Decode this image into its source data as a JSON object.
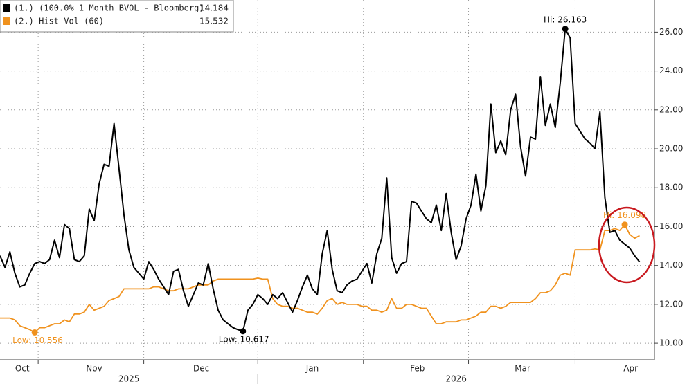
{
  "chart_data": {
    "type": "line",
    "series": [
      {
        "name": "(1.)  (100.0% 1 Month BVOL - Bloomberg)",
        "color": "#000000",
        "values": [
          14.5,
          13.9,
          14.7,
          13.6,
          12.9,
          13.0,
          13.6,
          14.1,
          14.2,
          14.1,
          14.3,
          15.3,
          14.4,
          16.1,
          15.9,
          14.3,
          14.2,
          14.5,
          16.9,
          16.3,
          18.2,
          19.2,
          19.1,
          21.3,
          19.0,
          16.6,
          14.8,
          13.9,
          13.6,
          13.3,
          14.2,
          13.8,
          13.3,
          12.9,
          12.5,
          13.7,
          13.8,
          12.7,
          11.9,
          12.5,
          13.1,
          13.0,
          14.1,
          12.8,
          11.7,
          11.2,
          11.0,
          10.8,
          10.7,
          10.617,
          11.7,
          12.0,
          12.5,
          12.3,
          12.0,
          12.5,
          12.3,
          12.6,
          12.1,
          11.6,
          12.2,
          12.9,
          13.5,
          12.8,
          12.5,
          14.6,
          15.8,
          13.8,
          12.7,
          12.6,
          13.0,
          13.2,
          13.3,
          13.7,
          14.1,
          13.1,
          14.6,
          15.4,
          18.5,
          14.4,
          13.6,
          14.1,
          14.2,
          17.3,
          17.2,
          16.8,
          16.4,
          16.2,
          17.1,
          15.8,
          17.7,
          15.7,
          14.3,
          15.0,
          16.4,
          17.1,
          18.7,
          16.8,
          18.1,
          22.3,
          19.8,
          20.4,
          19.7,
          22.0,
          22.8,
          20.1,
          18.6,
          20.6,
          20.5,
          23.7,
          21.2,
          22.3,
          21.1,
          23.4,
          26.163,
          25.7,
          21.3,
          20.9,
          20.5,
          20.3,
          20.0,
          21.9,
          17.5,
          15.7,
          15.8,
          15.3,
          15.1,
          14.9,
          14.5,
          14.184
        ]
      },
      {
        "name": "(2.) Hist Vol (60)",
        "color": "#f0921e",
        "values": [
          11.3,
          11.3,
          11.3,
          11.2,
          10.9,
          10.8,
          10.7,
          10.556,
          10.8,
          10.8,
          10.9,
          11.0,
          11.0,
          11.2,
          11.1,
          11.5,
          11.5,
          11.6,
          12.0,
          11.7,
          11.8,
          11.9,
          12.2,
          12.3,
          12.4,
          12.8,
          12.8,
          12.8,
          12.8,
          12.8,
          12.8,
          12.9,
          12.9,
          12.8,
          12.7,
          12.7,
          12.8,
          12.8,
          12.8,
          12.9,
          13.0,
          13.0,
          13.0,
          13.2,
          13.3,
          13.3,
          13.3,
          13.3,
          13.3,
          13.3,
          13.3,
          13.3,
          13.35,
          13.3,
          13.3,
          12.3,
          12.0,
          11.9,
          11.9,
          11.8,
          11.8,
          11.7,
          11.6,
          11.6,
          11.5,
          11.8,
          12.2,
          12.3,
          12.0,
          12.1,
          12.0,
          12.0,
          12.0,
          11.9,
          11.9,
          11.7,
          11.7,
          11.6,
          11.7,
          12.3,
          11.8,
          11.8,
          12.0,
          12.0,
          11.9,
          11.8,
          11.8,
          11.4,
          11.0,
          11.0,
          11.1,
          11.1,
          11.1,
          11.2,
          11.2,
          11.3,
          11.4,
          11.6,
          11.6,
          11.9,
          11.9,
          11.8,
          11.9,
          12.1,
          12.1,
          12.1,
          12.1,
          12.1,
          12.3,
          12.6,
          12.6,
          12.7,
          13.0,
          13.5,
          13.6,
          13.5,
          14.8,
          14.8,
          14.8,
          14.8,
          14.85,
          14.8,
          15.8,
          15.8,
          15.9,
          15.8,
          16.098,
          15.6,
          15.4,
          15.532
        ]
      }
    ],
    "xlim": [
      0,
      132
    ],
    "ylim": [
      9.15,
      27.65
    ],
    "yticks": [
      {
        "value": 10,
        "label": "10.00"
      },
      {
        "value": 12,
        "label": "12.00"
      },
      {
        "value": 14,
        "label": "14.00"
      },
      {
        "value": 16,
        "label": "16.00"
      },
      {
        "value": 18,
        "label": "18.00"
      },
      {
        "value": 20,
        "label": "20.00"
      },
      {
        "value": 22,
        "label": "22.00"
      },
      {
        "value": 24,
        "label": "24.00"
      },
      {
        "value": 26,
        "label": "26.00"
      }
    ],
    "xticks": [
      {
        "value": 4.5,
        "label": "Oct"
      },
      {
        "value": 19,
        "label": "Nov"
      },
      {
        "value": 40.6,
        "label": "Dec"
      },
      {
        "value": 63,
        "label": "Jan"
      },
      {
        "value": 84.2,
        "label": "Feb"
      },
      {
        "value": 105.4,
        "label": "Mar"
      },
      {
        "value": 127.2,
        "label": "Apr"
      }
    ],
    "xgrid": [
      7.7,
      29,
      52,
      73.3,
      94.5,
      116
    ],
    "year_labels": [
      {
        "value": 26,
        "label": "2025"
      },
      {
        "value": 92,
        "label": "2026"
      }
    ],
    "year_divider": 52,
    "grid": true,
    "annotations": [
      {
        "text": "Hi: 26.163",
        "x": 114,
        "y": 26.163,
        "color": "#000000"
      },
      {
        "text": "Low: 10.617",
        "x": 49,
        "y": 10.617,
        "color": "#000000"
      },
      {
        "text": "Low: 10.556",
        "x": 7,
        "y": 10.556,
        "color": "#f0921e"
      },
      {
        "text": "Hi: 16.098",
        "x": 126,
        "y": 16.098,
        "color": "#f0921e"
      }
    ]
  }
}
